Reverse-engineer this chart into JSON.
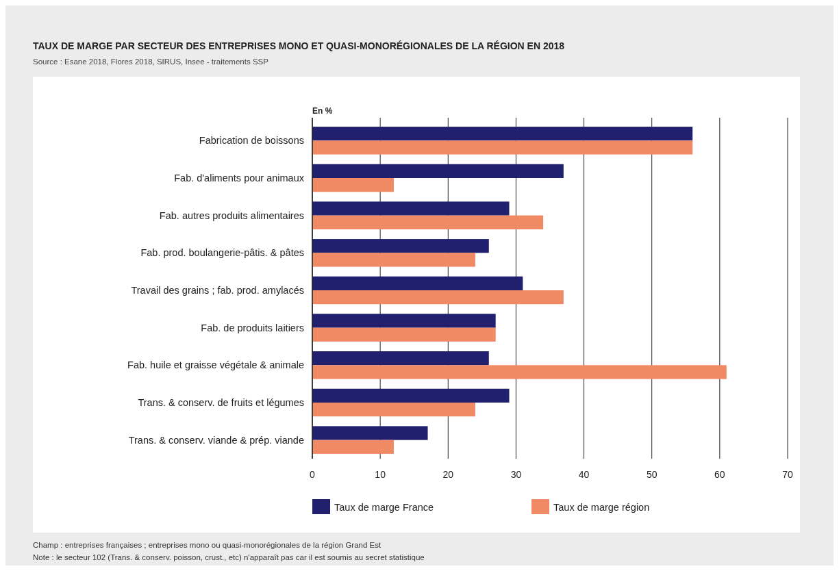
{
  "chart_data": {
    "type": "bar",
    "orientation": "horizontal",
    "title": "TAUX DE MARGE PAR SECTEUR DES ENTREPRISES MONO ET QUASI-MONORÉGIONALES DE LA RÉGION EN 2018",
    "subtitle": "Source : Esane 2018, Flores 2018, SIRUS, Insee - traitements SSP",
    "xlabel": "En %",
    "categories": [
      "Fabrication de boissons",
      "Fab. d'aliments pour animaux",
      "Fab. autres produits alimentaires",
      "Fab. prod. boulangerie-pâtis. & pâtes",
      "Travail des grains ; fab. prod. amylacés",
      "Fab. de produits laitiers",
      "Fab. huile et graisse végétale & animale",
      "Trans. & conserv. de fruits et légumes",
      "Trans. & conserv. viande & prép. viande"
    ],
    "series": [
      {
        "name": "Taux de marge France",
        "color": "#20206e",
        "values": [
          56,
          37,
          29,
          26,
          31,
          27,
          26,
          29,
          17
        ]
      },
      {
        "name": "Taux de marge région",
        "color": "#f08a64",
        "values": [
          56,
          12,
          34,
          24,
          37,
          27,
          61,
          24,
          12
        ]
      }
    ],
    "xlim": [
      0,
      70
    ],
    "xticks": [
      0,
      10,
      20,
      30,
      40,
      50,
      60,
      70
    ],
    "grid": "x",
    "legend": "bottom",
    "annotations": [
      "Champ : entreprises françaises ; entreprises mono ou quasi-monorégionales de la région Grand Est",
      "Note : le secteur 102 (Trans. & conserv. poisson, crust., etc) n'apparaît pas car il est soumis au secret statistique"
    ]
  }
}
